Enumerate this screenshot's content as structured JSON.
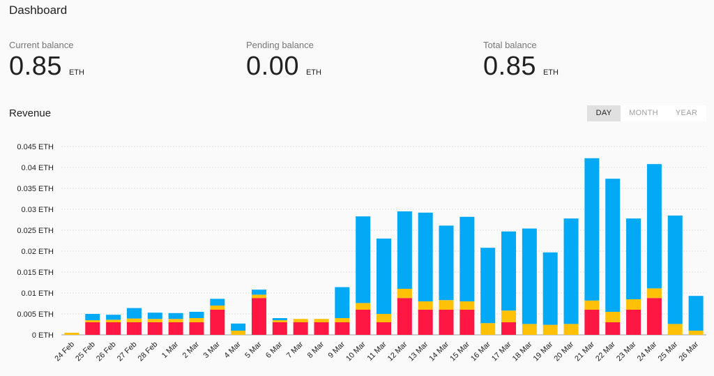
{
  "header": {
    "title": "Dashboard"
  },
  "balances": [
    {
      "label": "Current balance",
      "value": "0.85",
      "unit": "ETH"
    },
    {
      "label": "Pending balance",
      "value": "0.00",
      "unit": "ETH"
    },
    {
      "label": "Total balance",
      "value": "0.85",
      "unit": "ETH"
    }
  ],
  "revenue": {
    "title": "Revenue",
    "range_buttons": [
      {
        "label": "DAY",
        "active": true
      },
      {
        "label": "MONTH",
        "active": false
      },
      {
        "label": "YEAR",
        "active": false
      }
    ]
  },
  "chart_data": {
    "type": "bar",
    "stacked": true,
    "categories": [
      "24 Feb",
      "25 Feb",
      "26 Feb",
      "27 Feb",
      "28 Feb",
      "1 Mar",
      "2 Mar",
      "3 Mar",
      "4 Mar",
      "5 Mar",
      "6 Mar",
      "7 Mar",
      "8 Mar",
      "9 Mar",
      "10 Mar",
      "11 Mar",
      "12 Mar",
      "13 Mar",
      "14 Mar",
      "15 Mar",
      "16 Mar",
      "17 Mar",
      "18 Mar",
      "19 Mar",
      "20 Mar",
      "21 Mar",
      "22 Mar",
      "23 Mar",
      "24 Mar",
      "25 Mar",
      "26 Mar"
    ],
    "y_ticks": [
      "0 ETH",
      "0.005 ETH",
      "0.01 ETH",
      "0.015 ETH",
      "0.02 ETH",
      "0.025 ETH",
      "0.03 ETH",
      "0.035 ETH",
      "0.04 ETH",
      "0.045 ETH"
    ],
    "ylim": [
      0,
      0.045
    ],
    "grid": true,
    "legend": "none",
    "series": [
      {
        "color": "#ff1744",
        "values": [
          0,
          0.003,
          0.003,
          0.003,
          0.003,
          0.003,
          0.003,
          0.006,
          0,
          0.0088,
          0.003,
          0.003,
          0.003,
          0.003,
          0.006,
          0.003,
          0.0088,
          0.006,
          0.006,
          0.006,
          0,
          0.003,
          0,
          0,
          0,
          0.006,
          0.003,
          0.006,
          0.0088,
          0,
          0
        ]
      },
      {
        "color": "#ffc107",
        "values": [
          0.0005,
          0.0005,
          0.0006,
          0.0009,
          0.0008,
          0.0008,
          0.001,
          0.001,
          0.001,
          0.0008,
          0.0005,
          0.0008,
          0.0008,
          0.001,
          0.0016,
          0.002,
          0.0022,
          0.002,
          0.0023,
          0.002,
          0.0028,
          0.0028,
          0.0026,
          0.0024,
          0.0026,
          0.0022,
          0.0025,
          0.0025,
          0.0023,
          0.0026,
          0.001
        ]
      },
      {
        "color": "#03a9f4",
        "values": [
          0,
          0.0015,
          0.0012,
          0.0025,
          0.0015,
          0.0014,
          0.0015,
          0.0016,
          0.0017,
          0.0012,
          0.0005,
          0,
          0,
          0.0074,
          0.0207,
          0.018,
          0.0185,
          0.0212,
          0.0178,
          0.0202,
          0.018,
          0.0189,
          0.0228,
          0.0173,
          0.0252,
          0.034,
          0.0318,
          0.0193,
          0.0297,
          0.0259,
          0.0083
        ]
      }
    ]
  }
}
